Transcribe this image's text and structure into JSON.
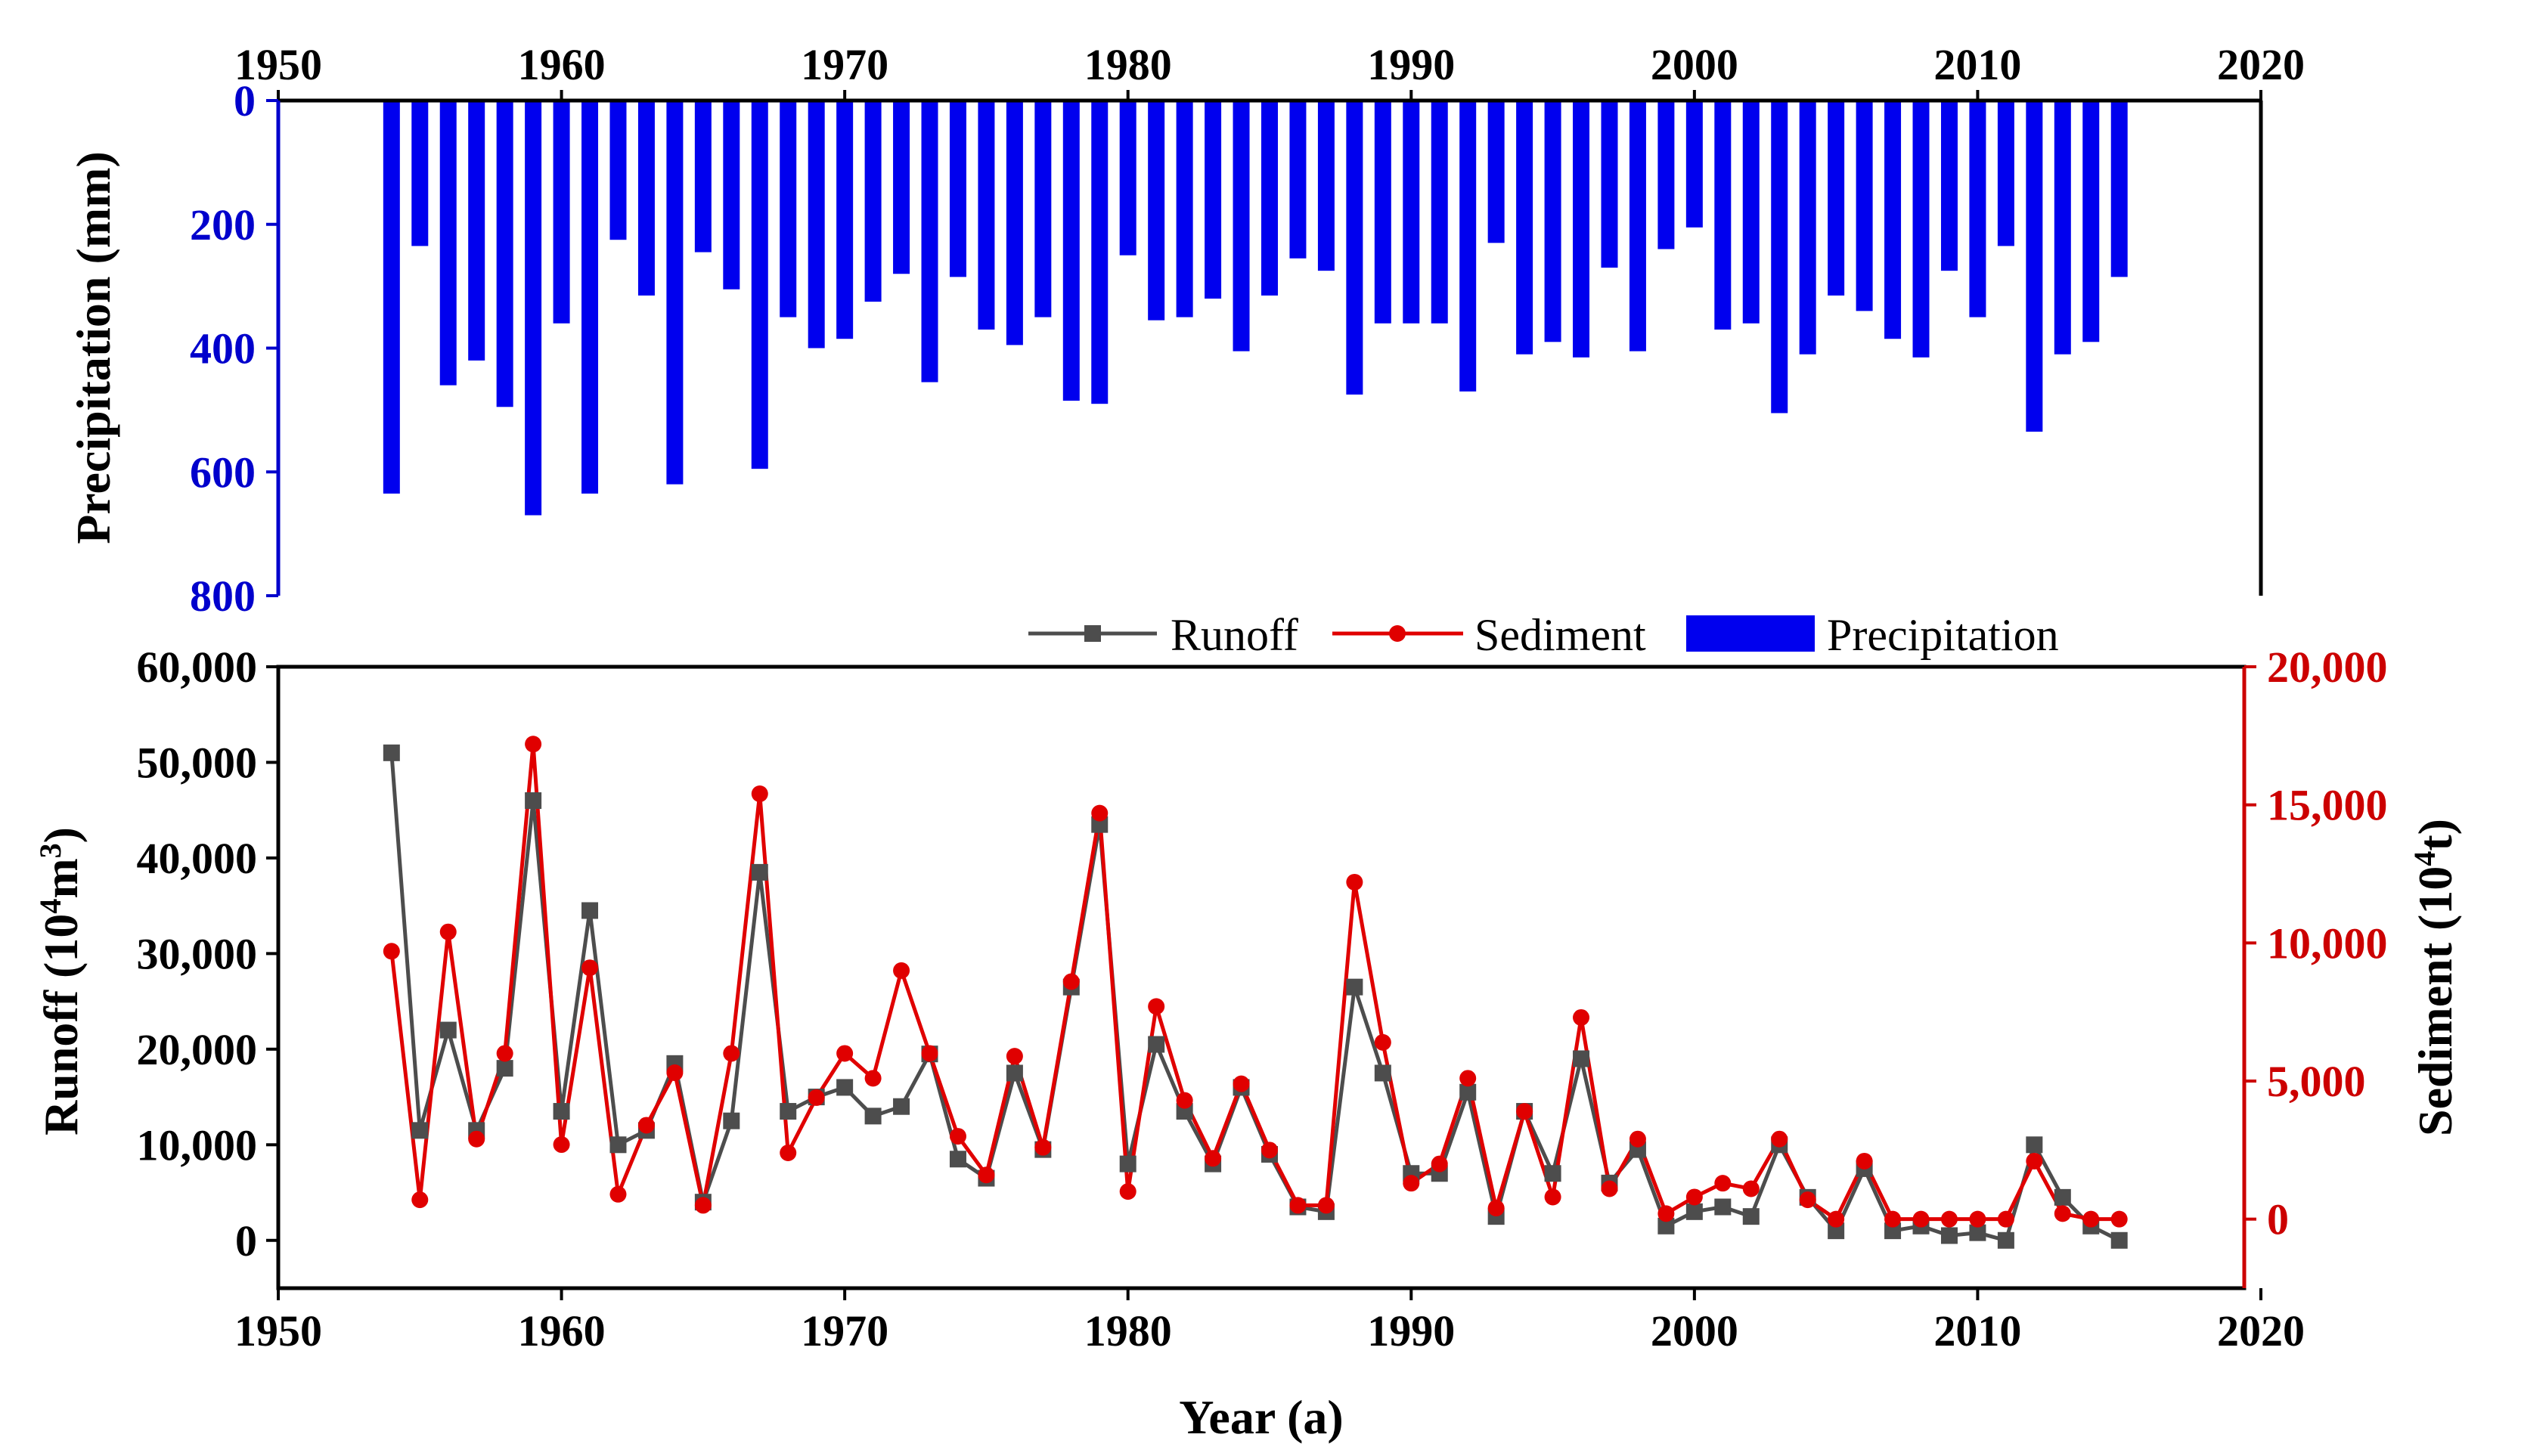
{
  "chart_data": {
    "type": "combo",
    "x_axis": {
      "label": "Year (a)",
      "range": [
        1950,
        2020
      ],
      "ticks": [
        1950,
        1960,
        1970,
        1980,
        1990,
        2000,
        2010,
        2020
      ],
      "tick_labels": [
        "1950",
        "1960",
        "1970",
        "1980",
        "1990",
        "2000",
        "2010",
        "2020"
      ]
    },
    "precipitation_axis": {
      "label": "Precipitation (mm)",
      "range": [
        0,
        800
      ],
      "inverted": true,
      "ticks": [
        0,
        200,
        400,
        600,
        800
      ],
      "tick_labels": [
        "0",
        "200",
        "400",
        "600",
        "800"
      ]
    },
    "runoff_axis": {
      "label_main": "Runoff (10",
      "label_sup1": "4",
      "label_mid": "m",
      "label_sup2": "3",
      "label_end": ")",
      "range": [
        -5000,
        60000
      ],
      "ticks": [
        0,
        10000,
        20000,
        30000,
        40000,
        50000,
        60000
      ],
      "tick_labels": [
        "0",
        "10,000",
        "20,000",
        "30,000",
        "40,000",
        "50,000",
        "60,000"
      ]
    },
    "sediment_axis": {
      "label_main": "Sediment (10",
      "label_sup": "4",
      "label_end": "t)",
      "range": [
        -2500,
        20000
      ],
      "ticks": [
        0,
        5000,
        10000,
        15000,
        20000
      ],
      "tick_labels": [
        "0",
        "5,000",
        "10,000",
        "15,000",
        "20,000"
      ]
    },
    "legend": {
      "placement": "between-panels",
      "runoff": "Runoff",
      "sediment": "Sediment",
      "precipitation": "Precipitation"
    },
    "colors": {
      "runoff": "#4d4d4d",
      "sediment": "#e00000",
      "precipitation": "#0000ee",
      "precip_axis": "#0000cc",
      "sediment_axis": "#cc0000"
    },
    "years": [
      1954,
      1955,
      1956,
      1957,
      1958,
      1959,
      1960,
      1961,
      1962,
      1963,
      1964,
      1965,
      1966,
      1967,
      1968,
      1969,
      1970,
      1971,
      1972,
      1973,
      1974,
      1975,
      1976,
      1977,
      1978,
      1979,
      1980,
      1981,
      1982,
      1983,
      1984,
      1985,
      1986,
      1987,
      1988,
      1989,
      1990,
      1991,
      1992,
      1993,
      1994,
      1995,
      1996,
      1997,
      1998,
      1999,
      2000,
      2001,
      2002,
      2003,
      2004,
      2005,
      2006,
      2007,
      2008,
      2009,
      2010,
      2011,
      2012,
      2013,
      2014,
      2015
    ],
    "precipitation": [
      635,
      235,
      460,
      420,
      495,
      670,
      360,
      635,
      225,
      315,
      620,
      245,
      305,
      595,
      350,
      400,
      385,
      325,
      280,
      455,
      285,
      370,
      395,
      350,
      485,
      490,
      250,
      355,
      350,
      320,
      405,
      315,
      255,
      275,
      475,
      360,
      360,
      360,
      470,
      230,
      410,
      390,
      415,
      270,
      405,
      240,
      205,
      370,
      360,
      505,
      410,
      315,
      340,
      385,
      415,
      275,
      350,
      235,
      535,
      410,
      390,
      285
    ],
    "runoff": [
      51000,
      11500,
      22000,
      11500,
      18000,
      46000,
      13500,
      34500,
      10000,
      11500,
      18500,
      4000,
      12500,
      38500,
      13500,
      15000,
      16000,
      13000,
      14000,
      19500,
      8500,
      6500,
      17500,
      9500,
      26500,
      43500,
      8000,
      20500,
      13500,
      8000,
      16000,
      9000,
      3500,
      3000,
      26500,
      17500,
      7000,
      7000,
      15500,
      2500,
      13500,
      7000,
      19000,
      6000,
      9500,
      1500,
      3000,
      3500,
      2500,
      10000,
      4500,
      1000,
      7500,
      1000,
      1500,
      500,
      800,
      0,
      10000,
      4500,
      1500,
      0
    ],
    "sediment": [
      9700,
      700,
      10400,
      2900,
      6000,
      17200,
      2700,
      9100,
      900,
      3400,
      5300,
      500,
      6000,
      15400,
      2400,
      4400,
      6000,
      5100,
      9000,
      6000,
      3000,
      1600,
      5900,
      2600,
      8600,
      14700,
      1000,
      7700,
      4300,
      2200,
      4900,
      2500,
      500,
      500,
      12200,
      6400,
      1300,
      2000,
      5100,
      400,
      3900,
      800,
      7300,
      1100,
      2900,
      200,
      800,
      1300,
      1100,
      2900,
      700,
      0,
      2100,
      0,
      0,
      0,
      0,
      0,
      2100,
      200,
      0,
      0
    ]
  }
}
